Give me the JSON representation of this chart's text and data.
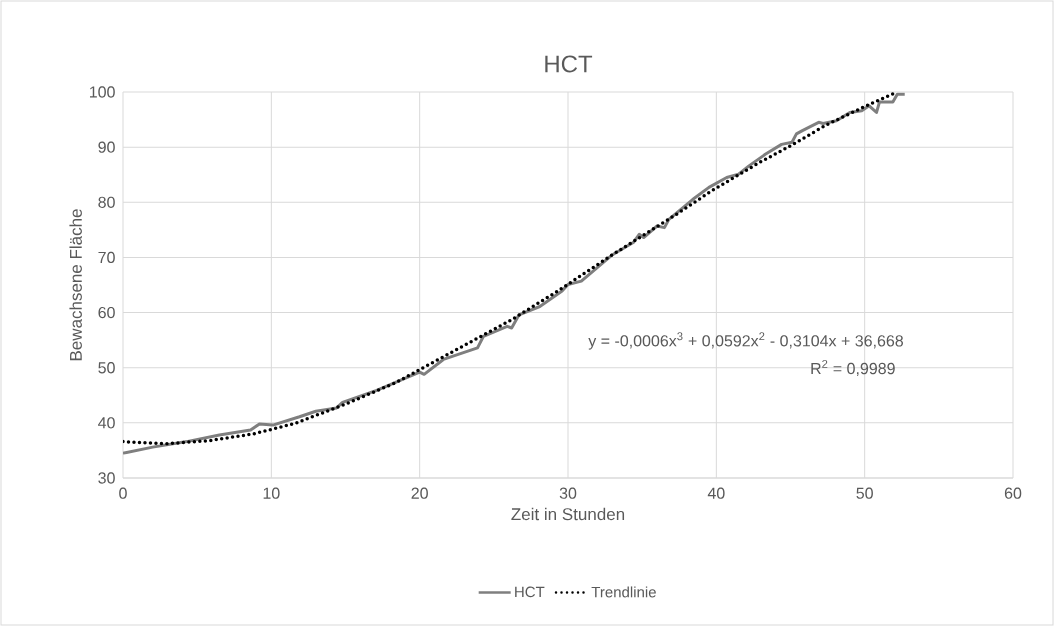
{
  "chart_data": {
    "type": "line",
    "title": "HCT",
    "xlabel": "Zeit in Stunden",
    "ylabel": "Bewachsene Fläche",
    "xlim": [
      0,
      60
    ],
    "ylim": [
      30,
      100
    ],
    "xticks": [
      0,
      10,
      20,
      30,
      40,
      50,
      60
    ],
    "yticks": [
      30,
      40,
      50,
      60,
      70,
      80,
      90,
      100
    ],
    "grid": true,
    "legend": "bottom",
    "annotations": [
      "y = -0,0006x$^{3}$ + 0,0592x$^{2}$ - 0,3104x + 36,668",
      "R$^{2}$ = 0,9989"
    ],
    "series": [
      {
        "name": "HCT",
        "color": "#7f7f7f",
        "line_style": "solid",
        "x": [
          0,
          2.0,
          4.3,
          6.5,
          8.6,
          9.2,
          10.1,
          11.9,
          13.0,
          14.4,
          14.8,
          17.1,
          20.0,
          20.3,
          21.6,
          22.9,
          23.9,
          24.3,
          25.9,
          26.2,
          26.7,
          28.1,
          29.6,
          30.0,
          30.9,
          33.0,
          34.4,
          34.8,
          35.1,
          36.0,
          36.5,
          36.8,
          38.4,
          39.5,
          40.7,
          41.5,
          42.2,
          43.3,
          44.4,
          45.1,
          45.4,
          45.8,
          46.9,
          47.2,
          48.1,
          49.0,
          49.8,
          50.3,
          50.8,
          51.0,
          51.9,
          52.2,
          52.7
        ],
        "values": [
          34.5,
          35.6,
          36.6,
          37.8,
          38.7,
          39.8,
          39.6,
          41.1,
          42.1,
          42.7,
          43.7,
          45.9,
          49.2,
          48.8,
          51.5,
          52.7,
          53.6,
          55.7,
          57.5,
          57.2,
          59.6,
          61.1,
          63.9,
          65.1,
          65.7,
          70.5,
          72.7,
          74.2,
          73.6,
          75.7,
          75.4,
          76.9,
          80.5,
          82.7,
          84.5,
          85.1,
          86.6,
          88.7,
          90.5,
          90.9,
          92.4,
          93.0,
          94.5,
          94.3,
          94.8,
          96.3,
          96.6,
          97.5,
          96.3,
          98.2,
          98.2,
          99.6,
          99.6
        ]
      },
      {
        "name": "Trendlinie",
        "color": "#000000",
        "line_style": "dotted",
        "x": [
          0,
          2.9,
          5.9,
          8.8,
          11.6,
          15.1,
          18.4,
          20.3,
          22.9,
          26.2,
          29.3,
          33.0,
          37.3,
          39.7,
          42.9,
          44.9,
          47.4,
          50.1,
          52.1
        ],
        "values": [
          36.6,
          36.2,
          36.8,
          38.0,
          39.9,
          43.5,
          47.3,
          50.1,
          53.9,
          58.7,
          63.9,
          70.5,
          77.8,
          82.1,
          87.2,
          90.1,
          94.0,
          97.5,
          99.9
        ]
      }
    ]
  }
}
